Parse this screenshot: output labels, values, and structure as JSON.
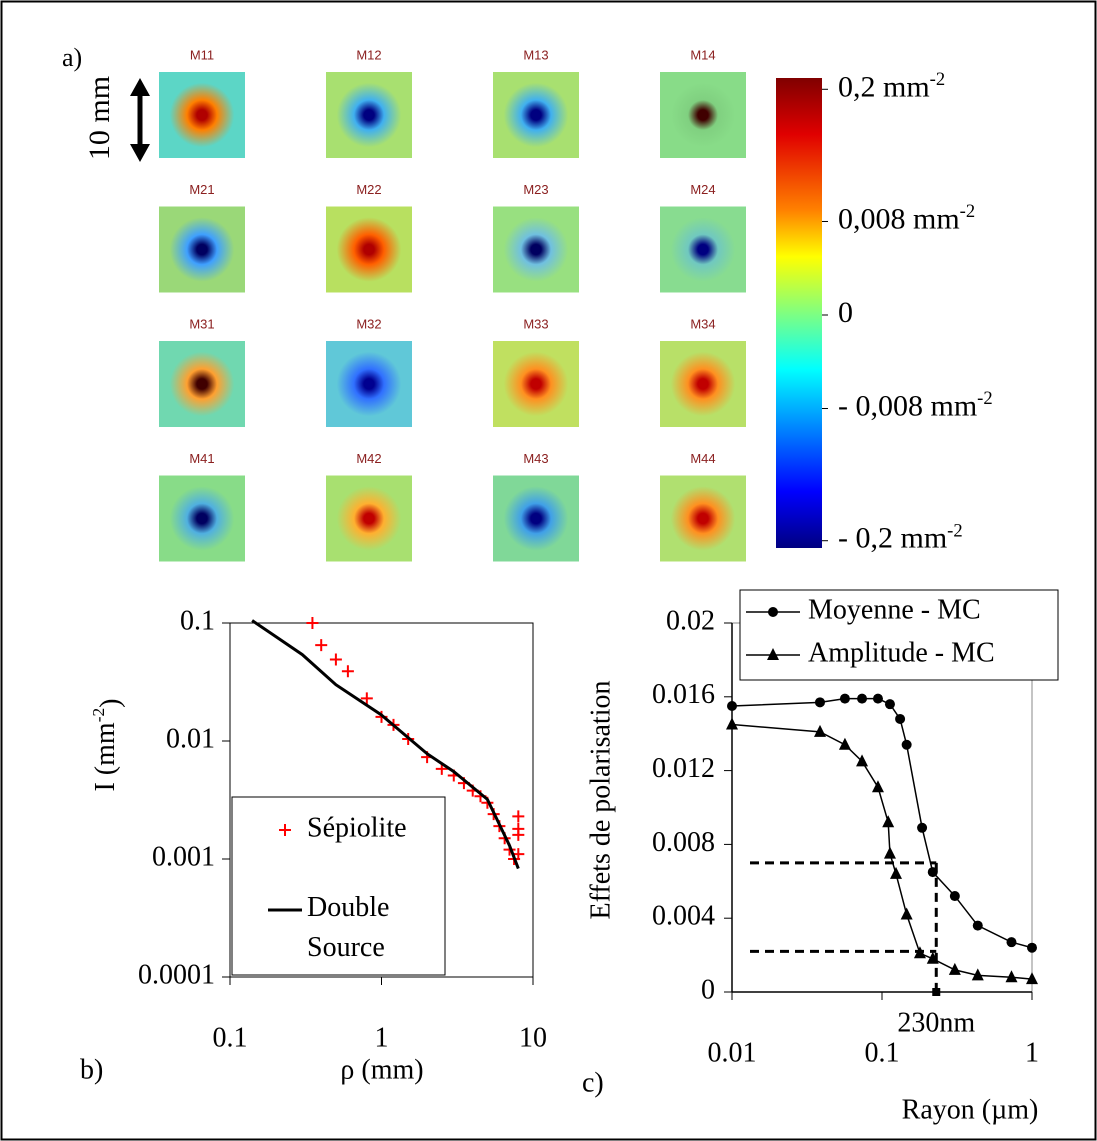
{
  "chart_data": [
    {
      "type": "image-grid",
      "label": "a)",
      "scale_label": "10 mm",
      "panels": [
        {
          "title": "M11"
        },
        {
          "title": "M12"
        },
        {
          "title": "M13"
        },
        {
          "title": "M14"
        },
        {
          "title": "M21"
        },
        {
          "title": "M22"
        },
        {
          "title": "M23"
        },
        {
          "title": "M24"
        },
        {
          "title": "M31"
        },
        {
          "title": "M32"
        },
        {
          "title": "M33"
        },
        {
          "title": "M34"
        },
        {
          "title": "M41"
        },
        {
          "title": "M42"
        },
        {
          "title": "M43"
        },
        {
          "title": "M44"
        }
      ],
      "colorbar": {
        "scale": "symlog",
        "ticks": [
          {
            "value": 0.2,
            "label": "0,2 mm",
            "sup": "-2"
          },
          {
            "value": 0.008,
            "label": "0,008 mm",
            "sup": "-2"
          },
          0,
          {
            "value": -0.008,
            "label": "- 0,008 mm",
            "sup": "-2"
          },
          {
            "value": -0.2,
            "label": "- 0,2 mm",
            "sup": "-2"
          }
        ]
      }
    },
    {
      "type": "line",
      "label": "b)",
      "xlabel": "ρ (mm)",
      "ylabel": {
        "text": "I (mm",
        "sup": "-2",
        "tail": ")"
      },
      "xscale": "log",
      "yscale": "log",
      "xlim": [
        0.1,
        10
      ],
      "ylim": [
        0.0001,
        0.1
      ],
      "xticks": [
        0.1,
        1,
        10
      ],
      "yticks": [
        0.0001,
        0.001,
        0.01,
        0.1
      ],
      "series": [
        {
          "name": "Sépiolite",
          "color": "#ff0000",
          "marker": "+",
          "line": false,
          "x": [
            0.35,
            0.4,
            0.5,
            0.6,
            0.8,
            1,
            1.2,
            1.5,
            2,
            2.5,
            3,
            3.5,
            4,
            4.5,
            5,
            5.5,
            6,
            6.5,
            7,
            7.5,
            8,
            8,
            8,
            8
          ],
          "values": [
            0.1,
            0.065,
            0.049,
            0.039,
            0.023,
            0.016,
            0.0137,
            0.0104,
            0.0073,
            0.0058,
            0.0051,
            0.0044,
            0.0038,
            0.0034,
            0.003,
            0.0024,
            0.0019,
            0.0015,
            0.0012,
            0.001,
            0.0011,
            0.0016,
            0.0018,
            0.0023
          ]
        },
        {
          "name": "Double Source",
          "color": "#000000",
          "marker": "none",
          "line": true,
          "x": [
            0.14,
            0.3,
            0.5,
            1,
            2,
            3,
            5,
            7,
            8
          ],
          "values": [
            0.105,
            0.054,
            0.03,
            0.0166,
            0.0078,
            0.0055,
            0.0032,
            0.0013,
            0.00083
          ]
        }
      ]
    },
    {
      "type": "line",
      "label": "c)",
      "xlabel": "Rayon (µm)",
      "ylabel": "Effets de polarisation",
      "xscale": "log",
      "xlim": [
        0.01,
        1
      ],
      "ylim": [
        0,
        0.02
      ],
      "xticks": [
        0.01,
        0.1,
        1
      ],
      "yticks": [
        0,
        0.004,
        0.008,
        0.012,
        0.016,
        0.02
      ],
      "annotation": "230nm",
      "ref_x": 0.23,
      "ref_y": [
        0.007,
        0.0022
      ],
      "series": [
        {
          "name": "Moyenne - MC",
          "color": "#000000",
          "marker": "circle",
          "line": true,
          "x": [
            0.01,
            0.0386,
            0.0566,
            0.0736,
            0.094,
            0.113,
            0.132,
            0.146,
            0.185,
            0.218,
            0.306,
            0.435,
            0.73,
            1
          ],
          "values": [
            0.0155,
            0.0157,
            0.0159,
            0.0159,
            0.0159,
            0.0156,
            0.0148,
            0.0134,
            0.0089,
            0.0065,
            0.0052,
            0.0036,
            0.0027,
            0.0024
          ]
        },
        {
          "name": "Amplitude - MC",
          "color": "#000000",
          "marker": "triangle",
          "line": true,
          "x": [
            0.01,
            0.0386,
            0.0566,
            0.0736,
            0.094,
            0.11,
            0.113,
            0.124,
            0.146,
            0.179,
            0.218,
            0.306,
            0.435,
            0.73,
            1
          ],
          "values": [
            0.0145,
            0.0141,
            0.0134,
            0.0125,
            0.0111,
            0.0092,
            0.0075,
            0.0064,
            0.0042,
            0.0021,
            0.0018,
            0.0012,
            0.0009,
            0.0008,
            0.0007
          ]
        }
      ]
    }
  ]
}
